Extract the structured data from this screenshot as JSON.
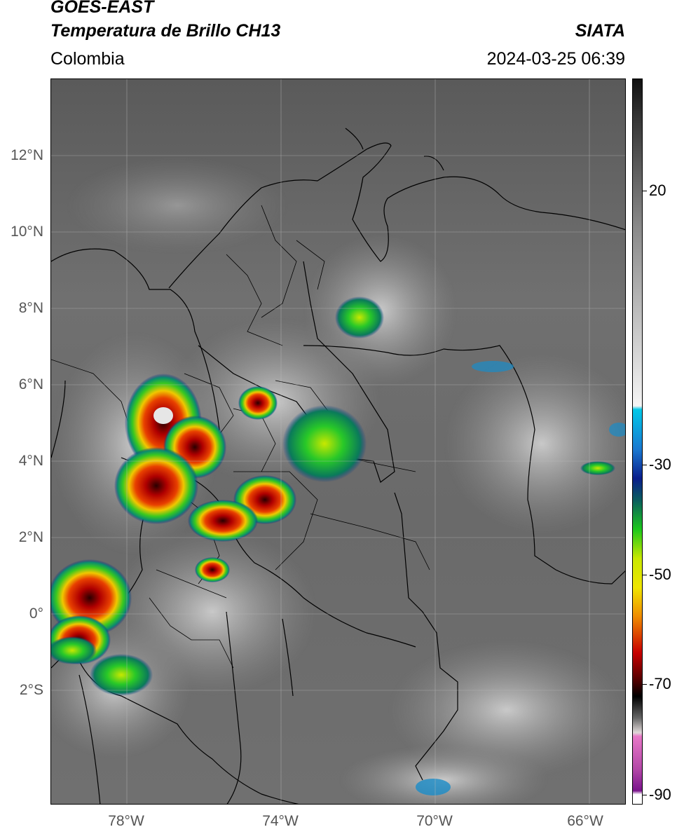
{
  "header": {
    "satellite": "GOES-EAST",
    "product": "Temperatura de Brillo CH13",
    "region": "Colombia",
    "agency": "SIATA",
    "datetime": "2024-03-25 06:39"
  },
  "map": {
    "lat_labels": [
      "12°N",
      "10°N",
      "8°N",
      "6°N",
      "4°N",
      "2°N",
      "0°",
      "2°S"
    ],
    "lon_labels": [
      "78°W",
      "74°W",
      "70°W",
      "66°W"
    ],
    "extent": {
      "lon_min": -80,
      "lon_max": -65.1,
      "lat_min": -4.9,
      "lat_max": 14
    }
  },
  "colorbar": {
    "labels": [
      "20",
      "-30",
      "-50",
      "-70",
      "-90"
    ],
    "colors": {
      "dark_gray": "#1c1c1c",
      "mid_gray": "#7a7a7a",
      "light_gray": "#f2f2f2",
      "cyan": "#00c8e8",
      "blue": "#0a1e8c",
      "teal": "#0a5e5e",
      "green": "#1cc81c",
      "yellow": "#f0e600",
      "orange": "#f08c00",
      "red": "#c80000",
      "maroon": "#4a0000",
      "black": "#000000",
      "pink": "#e878c8",
      "purple": "#7a148c",
      "white": "#ffffff"
    }
  }
}
